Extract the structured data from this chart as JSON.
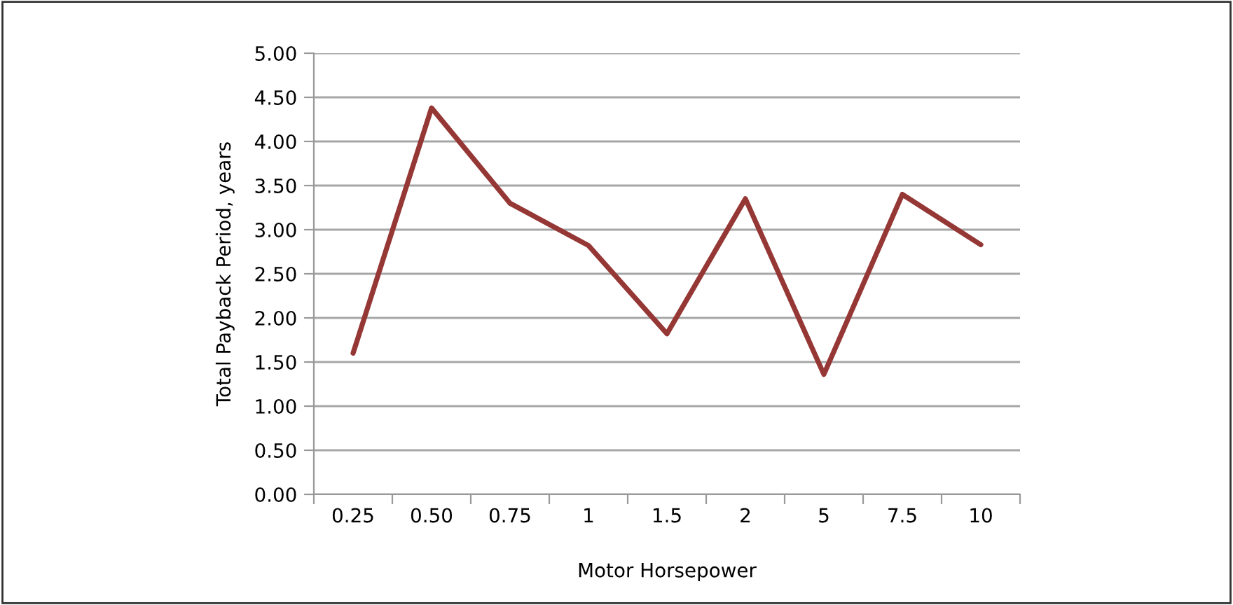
{
  "chart_data": {
    "type": "line",
    "xlabel": "Motor Horsepower",
    "ylabel": "Total Payback Period, years",
    "categories": [
      "0.25",
      "0.50",
      "0.75",
      "1",
      "1.5",
      "2",
      "5",
      "7.5",
      "10"
    ],
    "series": [
      {
        "color": "#953735",
        "values": [
          1.6,
          4.38,
          3.3,
          2.82,
          1.82,
          3.35,
          1.36,
          3.4,
          2.83
        ]
      }
    ],
    "ylim": [
      0,
      5
    ],
    "yticks": [
      {
        "value": 0,
        "label": "0.00"
      },
      {
        "value": 0.5,
        "label": "0.50"
      },
      {
        "value": 1,
        "label": "1.00"
      },
      {
        "value": 1.5,
        "label": "1.50"
      },
      {
        "value": 2,
        "label": "2.00"
      },
      {
        "value": 2.5,
        "label": "2.50"
      },
      {
        "value": 3,
        "label": "3.00"
      },
      {
        "value": 3.5,
        "label": "3.50"
      },
      {
        "value": 4,
        "label": "4.00"
      },
      {
        "value": 4.5,
        "label": "4.50"
      },
      {
        "value": 5,
        "label": "5.00"
      }
    ],
    "grid": "y",
    "marker": "none",
    "line_style": "solid"
  }
}
